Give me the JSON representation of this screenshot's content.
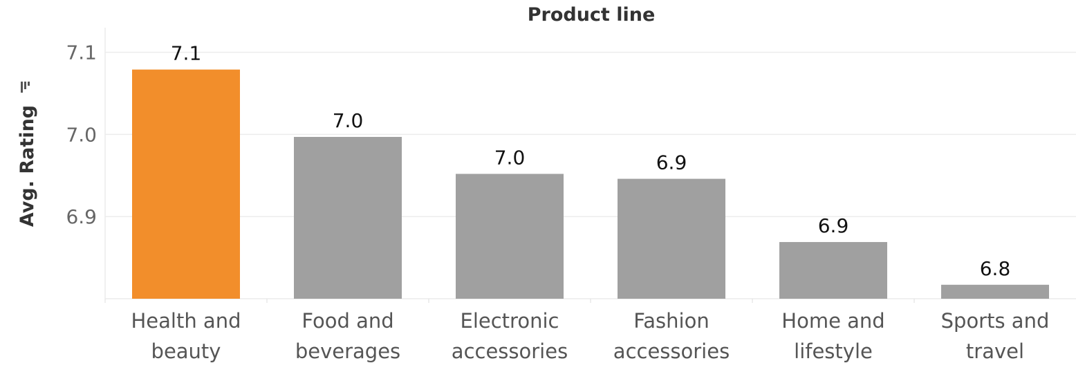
{
  "chart_data": {
    "type": "bar",
    "title": "Product line",
    "xlabel": "",
    "ylabel": "Avg. Rating",
    "sort_icon": "sort-descending-icon",
    "categories": [
      [
        "Health and",
        "beauty"
      ],
      [
        "Food and",
        "beverages"
      ],
      [
        "Electronic",
        "accessories"
      ],
      [
        "Fashion",
        "accessories"
      ],
      [
        "Home and",
        "lifestyle"
      ],
      [
        "Sports and",
        "travel"
      ]
    ],
    "values": [
      7.079,
      6.997,
      6.952,
      6.946,
      6.869,
      6.817
    ],
    "data_labels": [
      "7.1",
      "7.0",
      "7.0",
      "6.9",
      "6.9",
      "6.8"
    ],
    "yticks": [
      6.9,
      7.0,
      7.1
    ],
    "ytick_labels": [
      "6.9",
      "7.0",
      "7.1"
    ],
    "ylim": [
      6.8,
      7.13
    ],
    "grid": true,
    "colors": {
      "highlight": "#f28e2b",
      "default": "#a0a0a0",
      "grid": "#ececec"
    },
    "highlight_index": 0
  }
}
